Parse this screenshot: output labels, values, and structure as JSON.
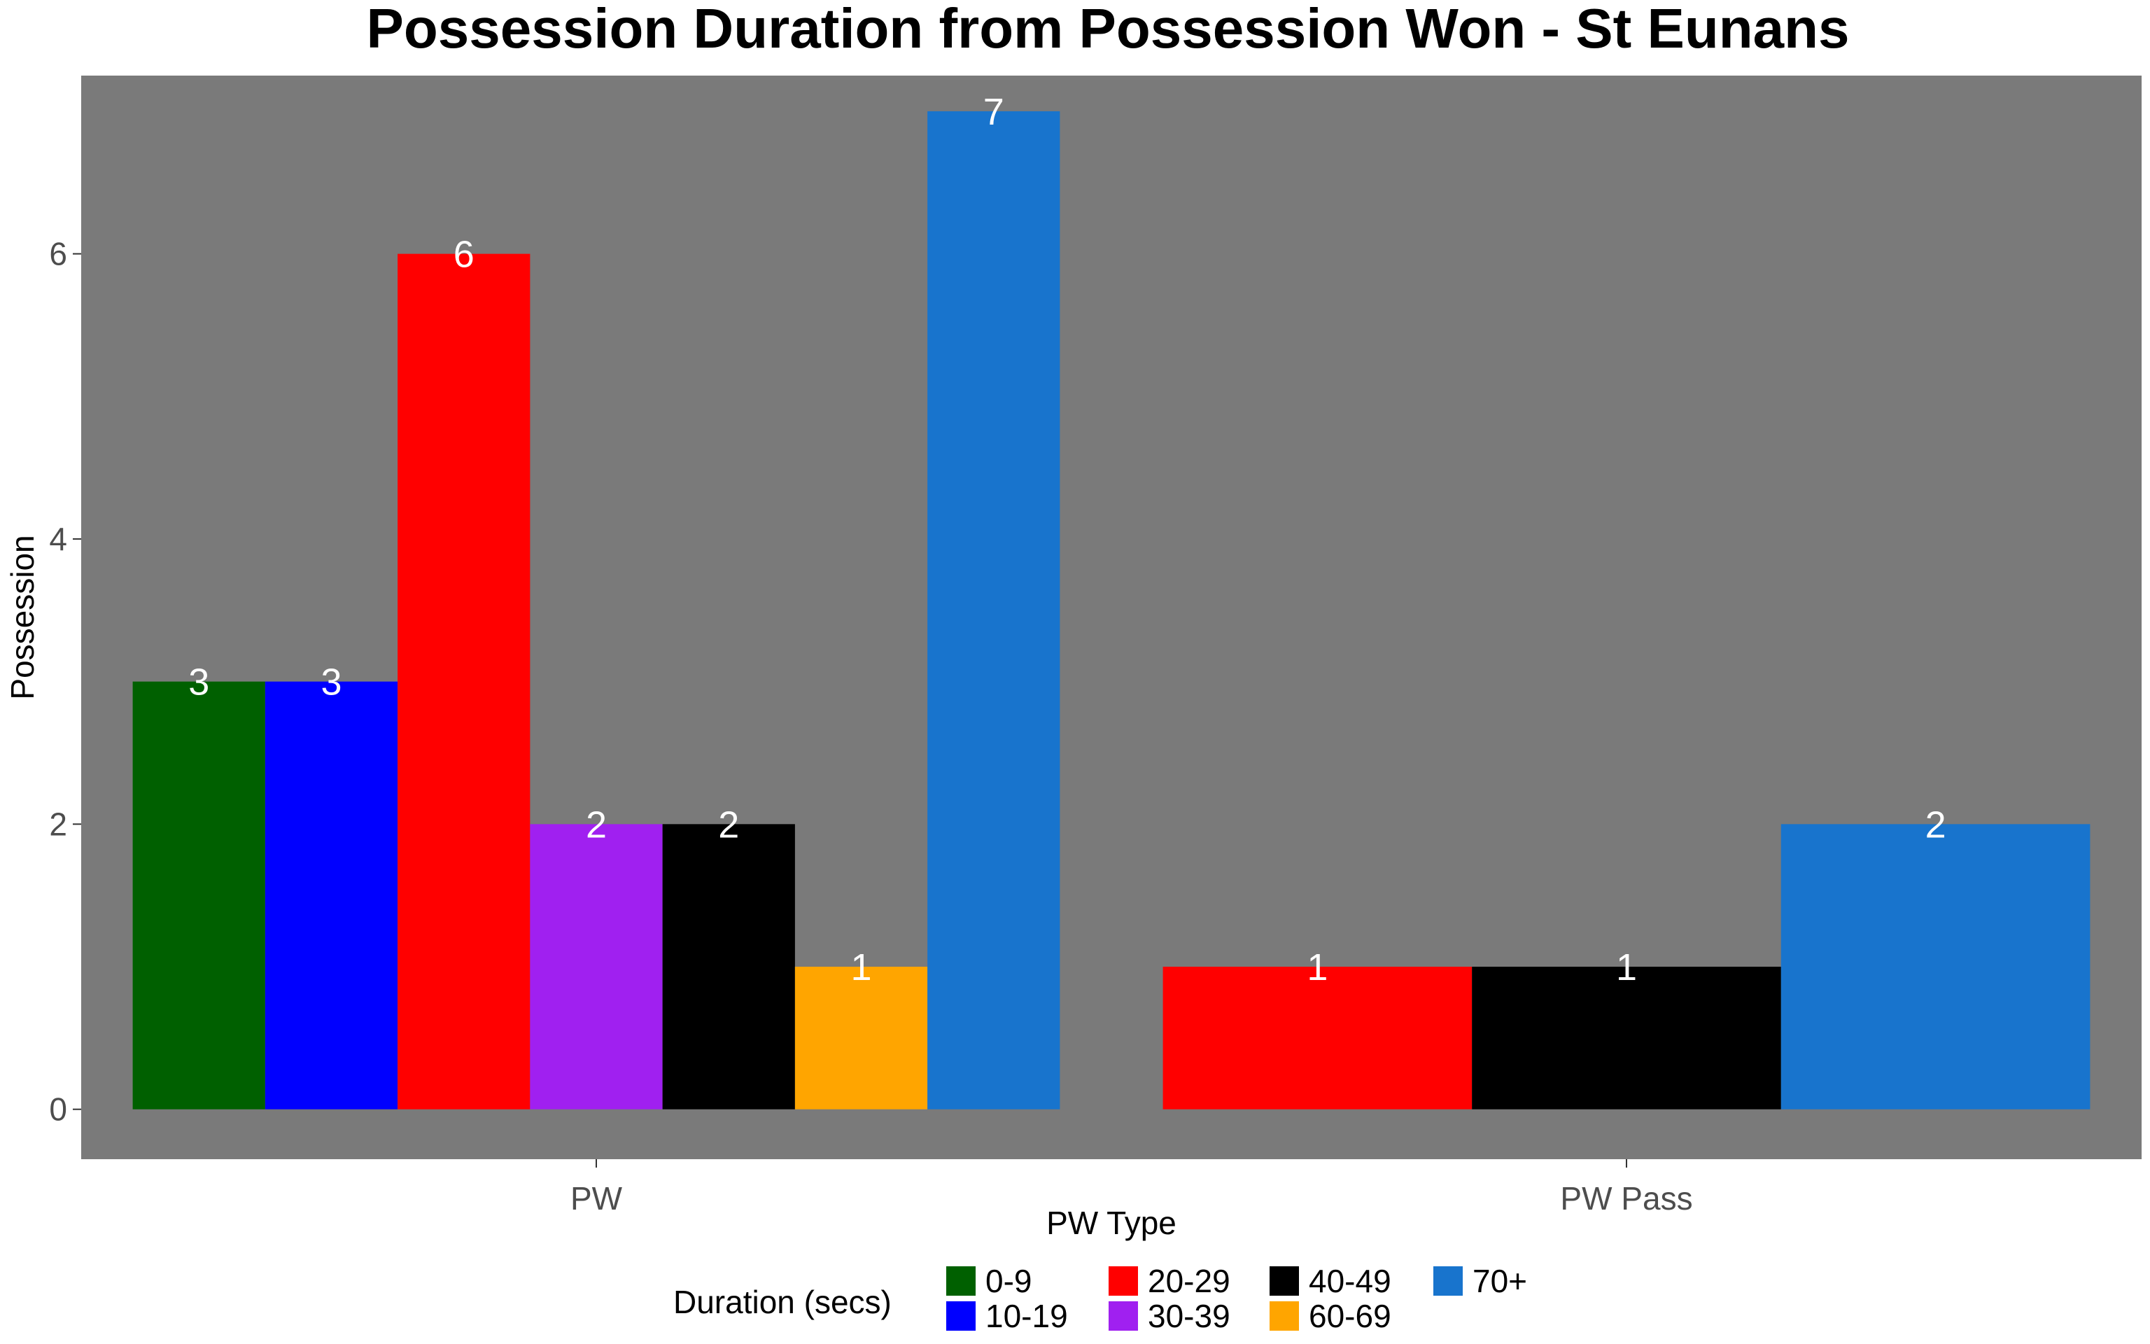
{
  "chart_data": {
    "type": "bar",
    "title": "Possession Duration from Possession Won - St Eunans",
    "xlabel": "PW Type",
    "ylabel": "Possession",
    "ylim": [
      -0.35,
      7.25
    ],
    "yticks": [
      0,
      2,
      4,
      6
    ],
    "categories": [
      "PW",
      "PW Pass"
    ],
    "legend_title": "Duration (secs)",
    "legend_position": "bottom",
    "background": "#7a7a7a",
    "grid": false,
    "series": [
      {
        "name": "0-9",
        "color": "#006000",
        "values": [
          3,
          null
        ]
      },
      {
        "name": "10-19",
        "color": "#0000ff",
        "values": [
          3,
          null
        ]
      },
      {
        "name": "20-29",
        "color": "#ff0000",
        "values": [
          6,
          1
        ]
      },
      {
        "name": "30-39",
        "color": "#a020f0",
        "values": [
          2,
          null
        ]
      },
      {
        "name": "40-49",
        "color": "#000000",
        "values": [
          2,
          1
        ]
      },
      {
        "name": "60-69",
        "color": "#ffa500",
        "values": [
          1,
          null
        ]
      },
      {
        "name": "70+",
        "color": "#1874cd",
        "values": [
          7,
          2
        ]
      }
    ]
  }
}
